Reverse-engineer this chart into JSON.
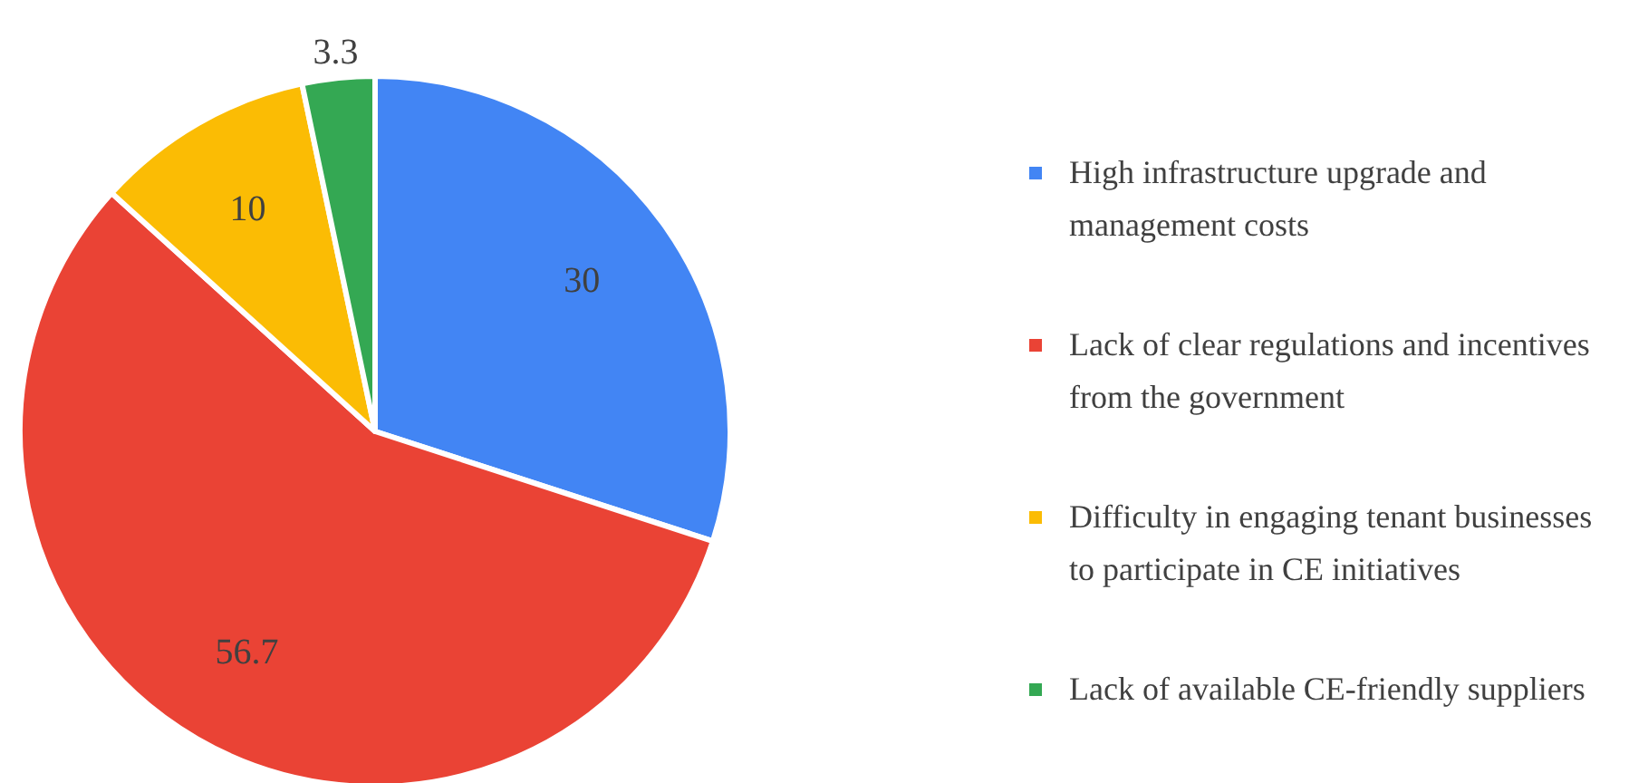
{
  "chart_data": {
    "type": "pie",
    "categories": [
      "High infrastructure upgrade and management costs",
      "Lack of clear regulations and incentives from the government",
      "Difficulty in engaging tenant businesses to participate in CE initiatives",
      "Lack of available CE-friendly suppliers"
    ],
    "values": [
      30,
      56.7,
      10,
      3.3
    ],
    "colors": [
      "#4285f4",
      "#ea4335",
      "#fbbc04",
      "#34a853"
    ],
    "data_labels": true,
    "legend": "right"
  }
}
